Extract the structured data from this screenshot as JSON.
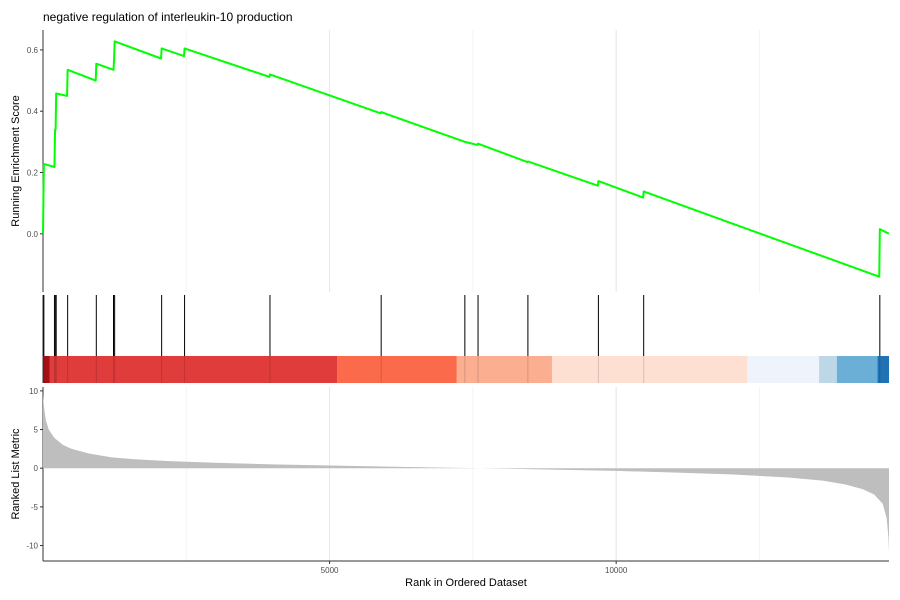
{
  "chart_data": {
    "type": "line",
    "title": "negative regulation of interleukin-10 production",
    "xlabel": "Rank in Ordered Dataset",
    "xlim": [
      0,
      14760
    ],
    "x_ticks": [
      5000,
      10000
    ],
    "x_tick_labels": [
      "5000",
      "10000"
    ],
    "grid": true,
    "colors": {
      "running_es": "#00ff00",
      "ranked_metric_fill": "#bebebe",
      "hit_line": "#000000"
    },
    "running_es": {
      "ylabel": "Running Enrichment Score",
      "ylim": [
        -0.19,
        0.665
      ],
      "y_ticks": [
        0.0,
        0.2,
        0.4,
        0.6
      ],
      "y_tick_labels": [
        "0.0",
        "0.2",
        "0.4",
        "0.6"
      ],
      "series": [
        {
          "values": [
            [
              0,
              0.0
            ],
            [
              15,
              0.228
            ],
            [
              200,
              0.218
            ],
            [
              210,
              0.34
            ],
            [
              220,
              0.34
            ],
            [
              230,
              0.458
            ],
            [
              420,
              0.45
            ],
            [
              430,
              0.535
            ],
            [
              920,
              0.5
            ],
            [
              930,
              0.555
            ],
            [
              1230,
              0.535
            ],
            [
              1240,
              0.568
            ],
            [
              1250,
              0.628
            ],
            [
              2060,
              0.572
            ],
            [
              2070,
              0.605
            ],
            [
              2460,
              0.58
            ],
            [
              2470,
              0.605
            ],
            [
              3950,
              0.512
            ],
            [
              3960,
              0.52
            ],
            [
              5890,
              0.393
            ],
            [
              5900,
              0.397
            ],
            [
              7360,
              0.3
            ],
            [
              7580,
              0.29
            ],
            [
              7590,
              0.294
            ],
            [
              8450,
              0.234
            ],
            [
              8460,
              0.236
            ],
            [
              9680,
              0.157
            ],
            [
              9690,
              0.172
            ],
            [
              10470,
              0.118
            ],
            [
              10480,
              0.138
            ],
            [
              14590,
              -0.14
            ],
            [
              14600,
              0.015
            ],
            [
              14760,
              0.0
            ]
          ]
        }
      ]
    },
    "hits": [
      15,
      200,
      220,
      230,
      430,
      930,
      1230,
      1250,
      2070,
      2470,
      3960,
      5900,
      7360,
      7590,
      8460,
      9690,
      10480,
      14600
    ],
    "heat_bands": [
      {
        "start": 0,
        "end": 120,
        "color": "#a50f15"
      },
      {
        "start": 120,
        "end": 5130,
        "color": "#e03c3c"
      },
      {
        "start": 5130,
        "end": 7220,
        "color": "#fb6a4a"
      },
      {
        "start": 7220,
        "end": 8880,
        "color": "#fcae91"
      },
      {
        "start": 8880,
        "end": 12290,
        "color": "#fee0d2"
      },
      {
        "start": 12290,
        "end": 13540,
        "color": "#eff3fb"
      },
      {
        "start": 13540,
        "end": 13850,
        "color": "#bdd7e7"
      },
      {
        "start": 13850,
        "end": 14560,
        "color": "#6baed6"
      },
      {
        "start": 14560,
        "end": 14760,
        "color": "#2171b5"
      }
    ],
    "ranked_metric": {
      "ylabel": "Ranked List Metric",
      "ylim": [
        -12,
        10.5
      ],
      "y_ticks": [
        10,
        5,
        0,
        -5,
        -10
      ],
      "y_tick_labels": [
        "10",
        "5",
        "0",
        "-5",
        "-10"
      ],
      "values": [
        [
          0,
          9.5
        ],
        [
          20,
          7.8
        ],
        [
          50,
          6.2
        ],
        [
          100,
          5.0
        ],
        [
          200,
          3.9
        ],
        [
          350,
          3.0
        ],
        [
          500,
          2.5
        ],
        [
          800,
          1.9
        ],
        [
          1200,
          1.4
        ],
        [
          1600,
          1.15
        ],
        [
          2200,
          0.92
        ],
        [
          3000,
          0.7
        ],
        [
          4000,
          0.5
        ],
        [
          5000,
          0.35
        ],
        [
          6000,
          0.2
        ],
        [
          7000,
          0.08
        ],
        [
          8000,
          -0.05
        ],
        [
          9000,
          -0.2
        ],
        [
          10000,
          -0.35
        ],
        [
          11000,
          -0.55
        ],
        [
          12000,
          -0.8
        ],
        [
          13000,
          -1.2
        ],
        [
          13600,
          -1.6
        ],
        [
          14000,
          -2.1
        ],
        [
          14300,
          -2.7
        ],
        [
          14500,
          -3.4
        ],
        [
          14650,
          -4.6
        ],
        [
          14720,
          -6.5
        ],
        [
          14750,
          -9.0
        ],
        [
          14760,
          -10.9
        ]
      ]
    }
  }
}
